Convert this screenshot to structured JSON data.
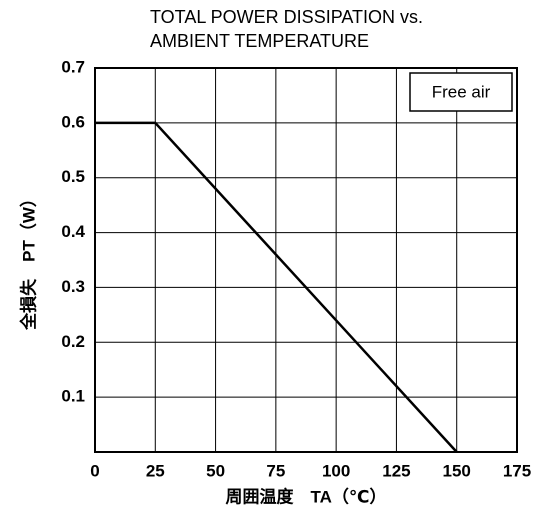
{
  "chart_data": {
    "type": "line",
    "title": [
      "TOTAL POWER DISSIPATION vs.",
      "AMBIENT TEMPERATURE"
    ],
    "x_label": "周囲温度　TA（℃）",
    "y_label": "全損失　PT（W）",
    "annotation": "Free air",
    "x": [
      0,
      25,
      150
    ],
    "series": [
      {
        "color": "#000000",
        "values": [
          0.6,
          0.6,
          0
        ]
      }
    ],
    "xlim": [
      0,
      175
    ],
    "xticks": [
      0,
      25,
      50,
      75,
      100,
      125,
      150,
      175
    ],
    "ylim": [
      0,
      0.7
    ],
    "yticks": [
      0.1,
      0.2,
      0.3,
      0.4,
      0.5,
      0.6,
      0.7
    ],
    "grid": true
  }
}
